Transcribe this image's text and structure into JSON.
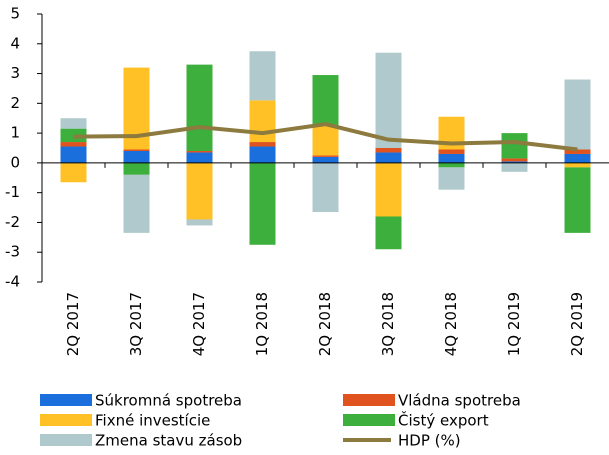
{
  "chart_data": {
    "type": "bar",
    "categories": [
      "2Q 2017",
      "3Q 2017",
      "4Q 2017",
      "1Q 2018",
      "2Q 2018",
      "3Q 2018",
      "4Q 2018",
      "1Q 2019",
      "2Q 2019"
    ],
    "series": [
      {
        "name": "Súkromná spotreba",
        "color": "#1a6fdc",
        "values": [
          0.55,
          0.4,
          0.35,
          0.55,
          0.2,
          0.35,
          0.3,
          0.05,
          0.3
        ]
      },
      {
        "name": "Vládna spotreba",
        "color": "#e0531f",
        "values": [
          0.15,
          0.05,
          0.05,
          0.15,
          0.05,
          0.15,
          0.15,
          0.1,
          0.15
        ]
      },
      {
        "name": "Fixné investície",
        "color": "#ffc125",
        "values": [
          -0.65,
          2.75,
          -1.9,
          1.4,
          1.0,
          -1.8,
          1.1,
          0,
          -0.15
        ]
      },
      {
        "name": "Čistý export",
        "color": "#3daf3d",
        "values": [
          0.45,
          -0.4,
          2.9,
          -2.75,
          1.7,
          -1.1,
          -0.15,
          0.85,
          -2.2
        ]
      },
      {
        "name": "Zmena stavu zásob",
        "color": "#b0c9cc",
        "values": [
          0.35,
          -1.95,
          -0.2,
          1.65,
          -1.65,
          3.2,
          -0.75,
          -0.3,
          2.35
        ]
      },
      {
        "name": "HDP (%)",
        "color": "#8c7a3e",
        "type": "line",
        "values": [
          0.88,
          0.9,
          1.2,
          1.0,
          1.3,
          0.78,
          0.65,
          0.7,
          0.45
        ]
      }
    ],
    "stacked": true,
    "ylim": [
      -4,
      5
    ],
    "yticks": [
      -4,
      -3,
      -2,
      -1,
      0,
      1,
      2,
      3,
      4,
      5
    ],
    "grid": false
  }
}
